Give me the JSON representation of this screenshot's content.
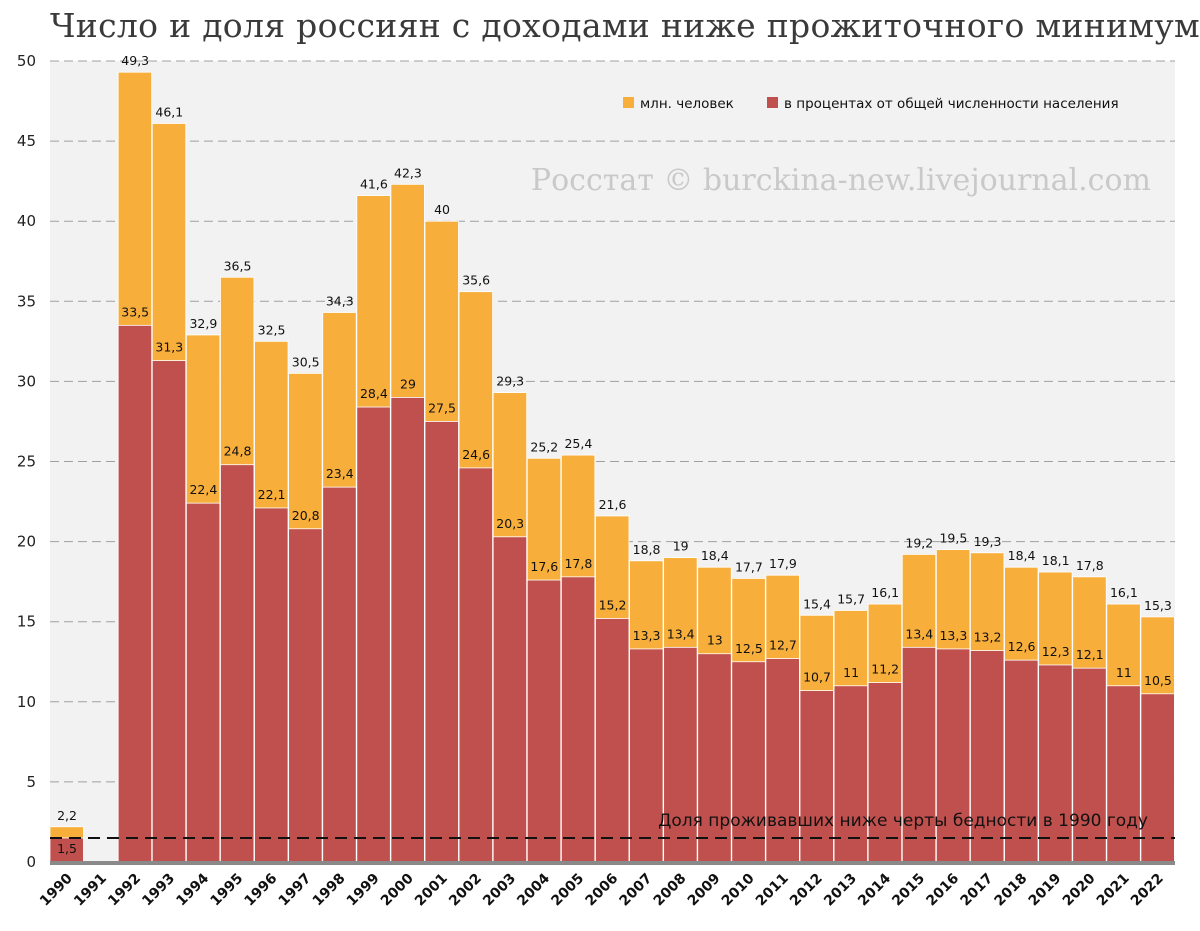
{
  "chart_data": {
    "type": "bar",
    "title": "Число и доля россиян с доходами ниже прожиточного минимума",
    "watermark": "Росстат © burckina-new.livejournal.com",
    "reference_line": {
      "value": 1.5,
      "label": "Доля проживавших ниже черты бедности в 1990 году"
    },
    "categories": [
      "1990",
      "1991",
      "1992",
      "1993",
      "1994",
      "1995",
      "1996",
      "1997",
      "1998",
      "1999",
      "2000",
      "2001",
      "2002",
      "2003",
      "2004",
      "2005",
      "2006",
      "2007",
      "2008",
      "2009",
      "2010",
      "2011",
      "2012",
      "2013",
      "2014",
      "2015",
      "2016",
      "2017",
      "2018",
      "2019",
      "2020",
      "2021",
      "2022"
    ],
    "series": [
      {
        "name": "млн. человек",
        "color": "#F8AE3A",
        "values": [
          2.2,
          null,
          49.3,
          46.1,
          32.9,
          36.5,
          32.5,
          30.5,
          34.3,
          41.6,
          42.3,
          40,
          35.6,
          29.3,
          25.2,
          25.4,
          21.6,
          18.8,
          19,
          18.4,
          17.7,
          17.9,
          15.4,
          15.7,
          16.1,
          19.2,
          19.5,
          19.3,
          18.4,
          18.1,
          17.8,
          16.1,
          15.3
        ],
        "labels": [
          "2,2",
          "",
          "49,3",
          "46,1",
          "32,9",
          "36,5",
          "32,5",
          "30,5",
          "34,3",
          "41,6",
          "42,3",
          "40",
          "35,6",
          "29,3",
          "25,2",
          "25,4",
          "21,6",
          "18,8",
          "19",
          "18,4",
          "17,7",
          "17,9",
          "15,4",
          "15,7",
          "16,1",
          "19,2",
          "19,5",
          "19,3",
          "18,4",
          "18,1",
          "17,8",
          "16,1",
          "15,3"
        ]
      },
      {
        "name": "в процентах от общей численности населения",
        "color": "#C0504D",
        "values": [
          1.5,
          null,
          33.5,
          31.3,
          22.4,
          24.8,
          22.1,
          20.8,
          23.4,
          28.4,
          29,
          27.5,
          24.6,
          20.3,
          17.6,
          17.8,
          15.2,
          13.3,
          13.4,
          13,
          12.5,
          12.7,
          10.7,
          11,
          11.2,
          13.4,
          13.3,
          13.2,
          12.6,
          12.3,
          12.1,
          11,
          10.5
        ],
        "labels": [
          "1,5",
          "",
          "33,5",
          "31,3",
          "22,4",
          "24,8",
          "22,1",
          "20,8",
          "23,4",
          "28,4",
          "29",
          "27,5",
          "24,6",
          "20,3",
          "17,6",
          "17,8",
          "15,2",
          "13,3",
          "13,4",
          "13",
          "12,5",
          "12,7",
          "10,7",
          "11",
          "11,2",
          "13,4",
          "13,3",
          "13,2",
          "12,6",
          "12,3",
          "12,1",
          "11",
          "10,5"
        ]
      }
    ],
    "yticks": [
      "0",
      "5",
      "10",
      "15",
      "20",
      "25",
      "30",
      "35",
      "40",
      "45",
      "50"
    ],
    "ylim": [
      0,
      50
    ],
    "grid": true,
    "legend": "top-right",
    "background": "#F2F2F2"
  }
}
